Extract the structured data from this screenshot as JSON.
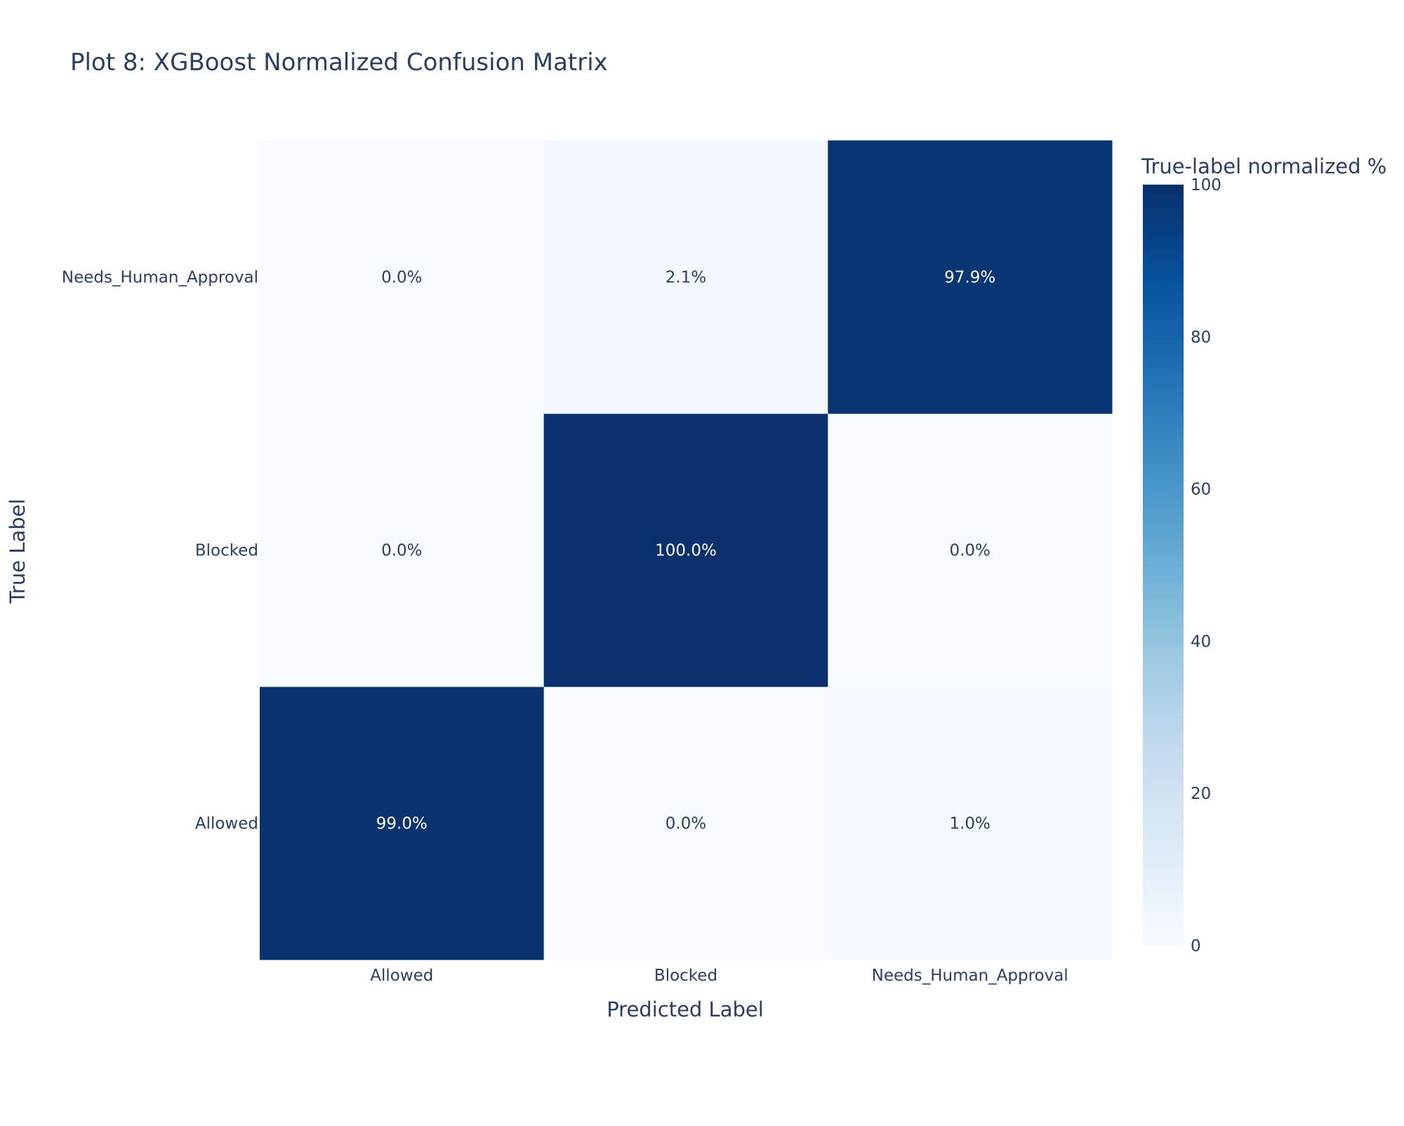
{
  "chart_data": {
    "type": "heatmap",
    "title": "Plot 8: XGBoost Normalized Confusion Matrix",
    "xlabel": "Predicted Label",
    "ylabel": "True Label",
    "x_categories": [
      "Allowed",
      "Blocked",
      "Needs_Human_Approval"
    ],
    "y_categories": [
      "Allowed",
      "Blocked",
      "Needs_Human_Approval"
    ],
    "z": [
      [
        99.0,
        0.0,
        1.0
      ],
      [
        0.0,
        100.0,
        0.0
      ],
      [
        0.0,
        2.1,
        97.9
      ]
    ],
    "cell_labels": [
      [
        "99.0%",
        "0.0%",
        "1.0%"
      ],
      [
        "0.0%",
        "100.0%",
        "0.0%"
      ],
      [
        "0.0%",
        "2.1%",
        "97.9%"
      ]
    ],
    "colorbar": {
      "title": "True-label normalized %",
      "range": [
        0,
        100
      ],
      "ticks": [
        "0",
        "20",
        "40",
        "60",
        "80",
        "100"
      ],
      "colorscale": "Blues"
    },
    "colors": {
      "text": "#2a3f5f",
      "low": "#f7fbff",
      "high": "#08306b"
    }
  }
}
